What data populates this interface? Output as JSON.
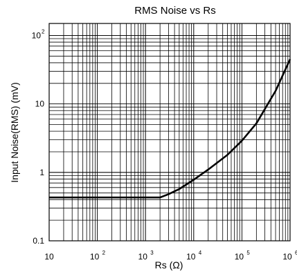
{
  "chart_data": {
    "type": "line",
    "title": "RMS Noise vs Rs",
    "xlabel": "Rs  (Ω)",
    "ylabel": "Input Noise(RMS) (mV)",
    "x_scale": "log",
    "y_scale": "log",
    "xlim": [
      10,
      1000000
    ],
    "ylim": [
      0.1,
      150
    ],
    "grid": true,
    "x_ticks": [
      {
        "base": "10",
        "exp": ""
      },
      {
        "base": "10",
        "exp": "2"
      },
      {
        "base": "10",
        "exp": "3"
      },
      {
        "base": "10",
        "exp": "4"
      },
      {
        "base": "10",
        "exp": "5"
      },
      {
        "base": "10",
        "exp": "6"
      }
    ],
    "y_ticks": [
      {
        "base": "0.1",
        "exp": ""
      },
      {
        "base": "1",
        "exp": ""
      },
      {
        "base": "10",
        "exp": ""
      },
      {
        "base": "10",
        "exp": "2"
      }
    ],
    "series": [
      {
        "x": [
          10,
          100,
          1000,
          2000,
          3000,
          5000,
          10000,
          20000,
          50000,
          100000,
          200000,
          500000,
          1000000
        ],
        "y": [
          0.43,
          0.43,
          0.43,
          0.43,
          0.48,
          0.57,
          0.78,
          1.1,
          1.8,
          2.9,
          5.2,
          15.5,
          45
        ]
      }
    ]
  }
}
